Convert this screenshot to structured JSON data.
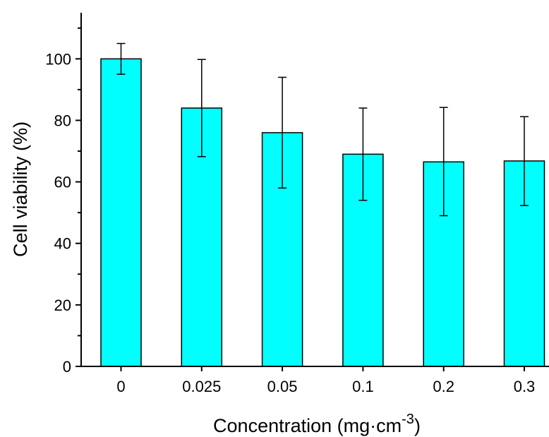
{
  "chart_data": {
    "type": "bar",
    "categories": [
      "0",
      "0.025",
      "0.05",
      "0.1",
      "0.2",
      "0.3"
    ],
    "values": [
      100,
      84,
      76,
      69,
      66.5,
      66.8
    ],
    "error_low": [
      95,
      68.2,
      58,
      54,
      49,
      52.3
    ],
    "error_high": [
      105,
      99.8,
      94,
      84,
      84.2,
      81.2
    ],
    "ylabel": "Cell viability (%)",
    "xlabel_main": "Concentration (mg·cm",
    "xlabel_sup": "-3",
    "xlabel_end": ")",
    "ylim": [
      0,
      115
    ],
    "yticks": [
      0,
      20,
      40,
      60,
      80,
      100
    ],
    "grid": false,
    "bar_color": "#00ffff"
  }
}
